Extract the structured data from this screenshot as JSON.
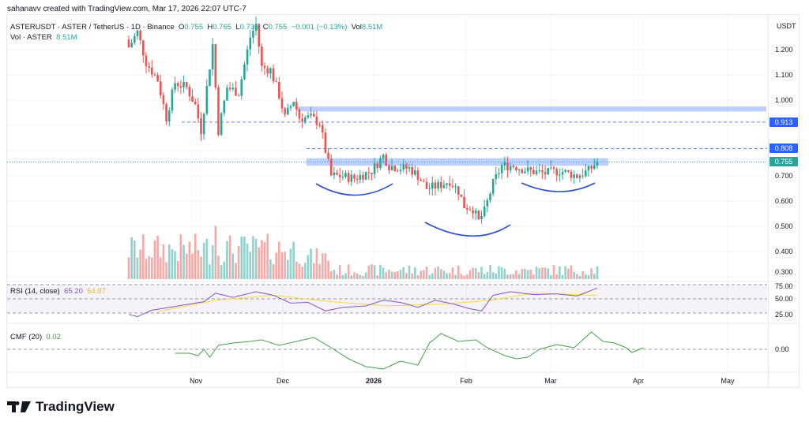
{
  "credit": "sahanavv created with TradingView.com, Mar 17, 2026 22:07 UTC-7",
  "legend": {
    "symbol": "ASTERUSDT · ASTER / TetherUS · 1D · Binance",
    "o_label": "O",
    "o": "0.755",
    "h_label": "H",
    "h": "0.765",
    "l_label": "L",
    "l": "0.735",
    "c_label": "C",
    "c": "0.755",
    "change": "−0.001 (−0.13%)",
    "vol_label": "Vol",
    "vol": "8.51M",
    "vol_line_label": "Vol · ASTER",
    "vol_line_value": "8.51M"
  },
  "axis": {
    "currency": "USDT",
    "price_ticks": [
      "1.200",
      "1.100",
      "1.000",
      "0.700",
      "0.600",
      "0.500",
      "0.400",
      "0.300"
    ],
    "rsi_ticks": [
      "75.00",
      "50.00",
      "25.00"
    ],
    "cmf_ticks": [
      "0.00"
    ],
    "tags": [
      {
        "value": "0.913",
        "color": "#2962ff"
      },
      {
        "value": "0.808",
        "color": "#2962ff"
      },
      {
        "value": "0.755",
        "color": "#26a69a"
      }
    ]
  },
  "time_labels": [
    "Nov",
    "Dec",
    "2026",
    "Feb",
    "Mar",
    "Apr",
    "May"
  ],
  "indicators": {
    "rsi_label": "RSI (14, close)",
    "rsi_value": "65.20",
    "rsi_ma": "54.87",
    "cmf_label": "CMF (20)",
    "cmf_value": "0.02"
  },
  "brand": "TradingView",
  "colors": {
    "up": "#26a69a",
    "down": "#ef5350",
    "zone": "#2962ff",
    "rsi": "#7e57c2",
    "rsi_ma": "#fdd835",
    "cmf": "#43a047"
  },
  "chart_data": {
    "type": "candlestick",
    "title": "ASTERUSDT 1D",
    "price_range": [
      0.3,
      1.3
    ],
    "close_path": [
      [
        0,
        1.21
      ],
      [
        3,
        1.27
      ],
      [
        6,
        1.15
      ],
      [
        10,
        1.08
      ],
      [
        13,
        0.93
      ],
      [
        16,
        1.07
      ],
      [
        20,
        1.05
      ],
      [
        23,
        0.98
      ],
      [
        25,
        0.88
      ],
      [
        29,
        1.22
      ],
      [
        31,
        0.88
      ],
      [
        34,
        1.05
      ],
      [
        38,
        1.03
      ],
      [
        42,
        1.25
      ],
      [
        44,
        1.3
      ],
      [
        46,
        1.13
      ],
      [
        49,
        1.12
      ],
      [
        52,
        1.02
      ],
      [
        54,
        0.93
      ],
      [
        57,
        1.0
      ],
      [
        59,
        0.93
      ],
      [
        63,
        0.93
      ],
      [
        66,
        0.91
      ],
      [
        68,
        0.8
      ],
      [
        70,
        0.7
      ],
      [
        73,
        0.7
      ],
      [
        78,
        0.69
      ],
      [
        84,
        0.72
      ],
      [
        88,
        0.78
      ],
      [
        90,
        0.74
      ],
      [
        95,
        0.73
      ],
      [
        97,
        0.73
      ],
      [
        100,
        0.7
      ],
      [
        103,
        0.65
      ],
      [
        107,
        0.66
      ],
      [
        111,
        0.68
      ],
      [
        114,
        0.64
      ],
      [
        116,
        0.58
      ],
      [
        119,
        0.57
      ],
      [
        121,
        0.52
      ],
      [
        123,
        0.56
      ],
      [
        126,
        0.67
      ],
      [
        129,
        0.74
      ],
      [
        133,
        0.74
      ],
      [
        138,
        0.72
      ],
      [
        144,
        0.71
      ],
      [
        149,
        0.72
      ],
      [
        155,
        0.7
      ],
      [
        159,
        0.72
      ],
      [
        162,
        0.755
      ]
    ],
    "levels": [
      {
        "price": 0.913,
        "style": "dashed"
      },
      {
        "price": 0.808,
        "style": "dashed"
      },
      {
        "price": 0.755,
        "style": "dotted"
      }
    ],
    "zones": [
      [
        0.955,
        0.975
      ],
      [
        0.74,
        0.77
      ]
    ],
    "rsi_path": [
      [
        0,
        28
      ],
      [
        3,
        25
      ],
      [
        8,
        34
      ],
      [
        14,
        38
      ],
      [
        20,
        42
      ],
      [
        26,
        46
      ],
      [
        30,
        58
      ],
      [
        36,
        52
      ],
      [
        44,
        60
      ],
      [
        50,
        55
      ],
      [
        56,
        44
      ],
      [
        62,
        45
      ],
      [
        68,
        33
      ],
      [
        74,
        38
      ],
      [
        82,
        40
      ],
      [
        88,
        48
      ],
      [
        94,
        45
      ],
      [
        100,
        38
      ],
      [
        106,
        48
      ],
      [
        112,
        43
      ],
      [
        118,
        36
      ],
      [
        122,
        33
      ],
      [
        126,
        55
      ],
      [
        132,
        60
      ],
      [
        140,
        56
      ],
      [
        148,
        57
      ],
      [
        155,
        54
      ],
      [
        162,
        65.2
      ]
    ],
    "rsi_ma_path": [
      [
        10,
        32
      ],
      [
        30,
        48
      ],
      [
        50,
        55
      ],
      [
        70,
        46
      ],
      [
        90,
        40
      ],
      [
        110,
        43
      ],
      [
        125,
        48
      ],
      [
        140,
        58
      ],
      [
        162,
        54.87
      ]
    ],
    "cmf_path": [
      [
        0,
        -0.05
      ],
      [
        5,
        -0.05
      ],
      [
        8,
        -0.08
      ],
      [
        10,
        0.0
      ],
      [
        12,
        -0.1
      ],
      [
        15,
        0.05
      ],
      [
        20,
        0.08
      ],
      [
        26,
        0.1
      ],
      [
        30,
        0.12
      ],
      [
        36,
        0.05
      ],
      [
        42,
        0.1
      ],
      [
        48,
        0.15
      ],
      [
        54,
        0.02
      ],
      [
        60,
        -0.12
      ],
      [
        66,
        -0.22
      ],
      [
        72,
        -0.25
      ],
      [
        78,
        -0.15
      ],
      [
        84,
        -0.2
      ],
      [
        88,
        0.08
      ],
      [
        92,
        0.2
      ],
      [
        98,
        0.1
      ],
      [
        104,
        0.12
      ],
      [
        108,
        0.02
      ],
      [
        114,
        -0.08
      ],
      [
        118,
        -0.12
      ],
      [
        122,
        -0.1
      ],
      [
        126,
        0.0
      ],
      [
        132,
        0.06
      ],
      [
        138,
        0.02
      ],
      [
        144,
        0.22
      ],
      [
        148,
        0.1
      ],
      [
        152,
        0.08
      ],
      [
        156,
        0.02
      ],
      [
        158,
        -0.04
      ],
      [
        162,
        0.02
      ]
    ]
  }
}
